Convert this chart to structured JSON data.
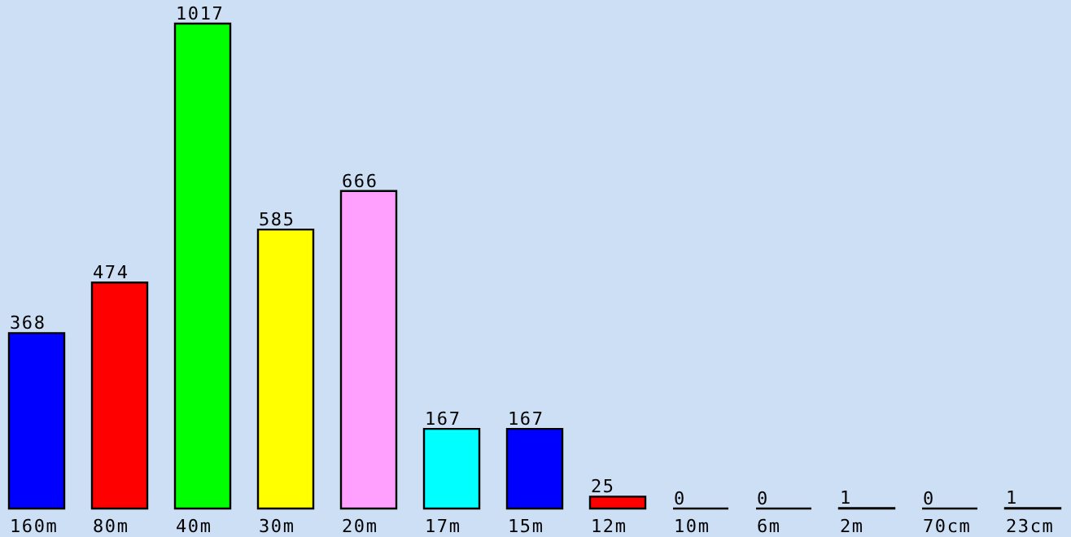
{
  "chart_data": {
    "type": "bar",
    "categories": [
      "160m",
      "80m",
      "40m",
      "30m",
      "20m",
      "17m",
      "15m",
      "12m",
      "10m",
      "6m",
      "2m",
      "70cm",
      "23cm"
    ],
    "values": [
      368,
      474,
      1017,
      585,
      666,
      167,
      167,
      25,
      0,
      0,
      1,
      0,
      1
    ],
    "colors": [
      "#0000ff",
      "#ff0000",
      "#00ff00",
      "#ffff00",
      "#ffa0ff",
      "#00ffff",
      "#0000ff",
      "#ff0000",
      "#000000",
      "#000000",
      "#ffa0ff",
      "#000000",
      "#0000ff"
    ],
    "data_labels": true
  }
}
